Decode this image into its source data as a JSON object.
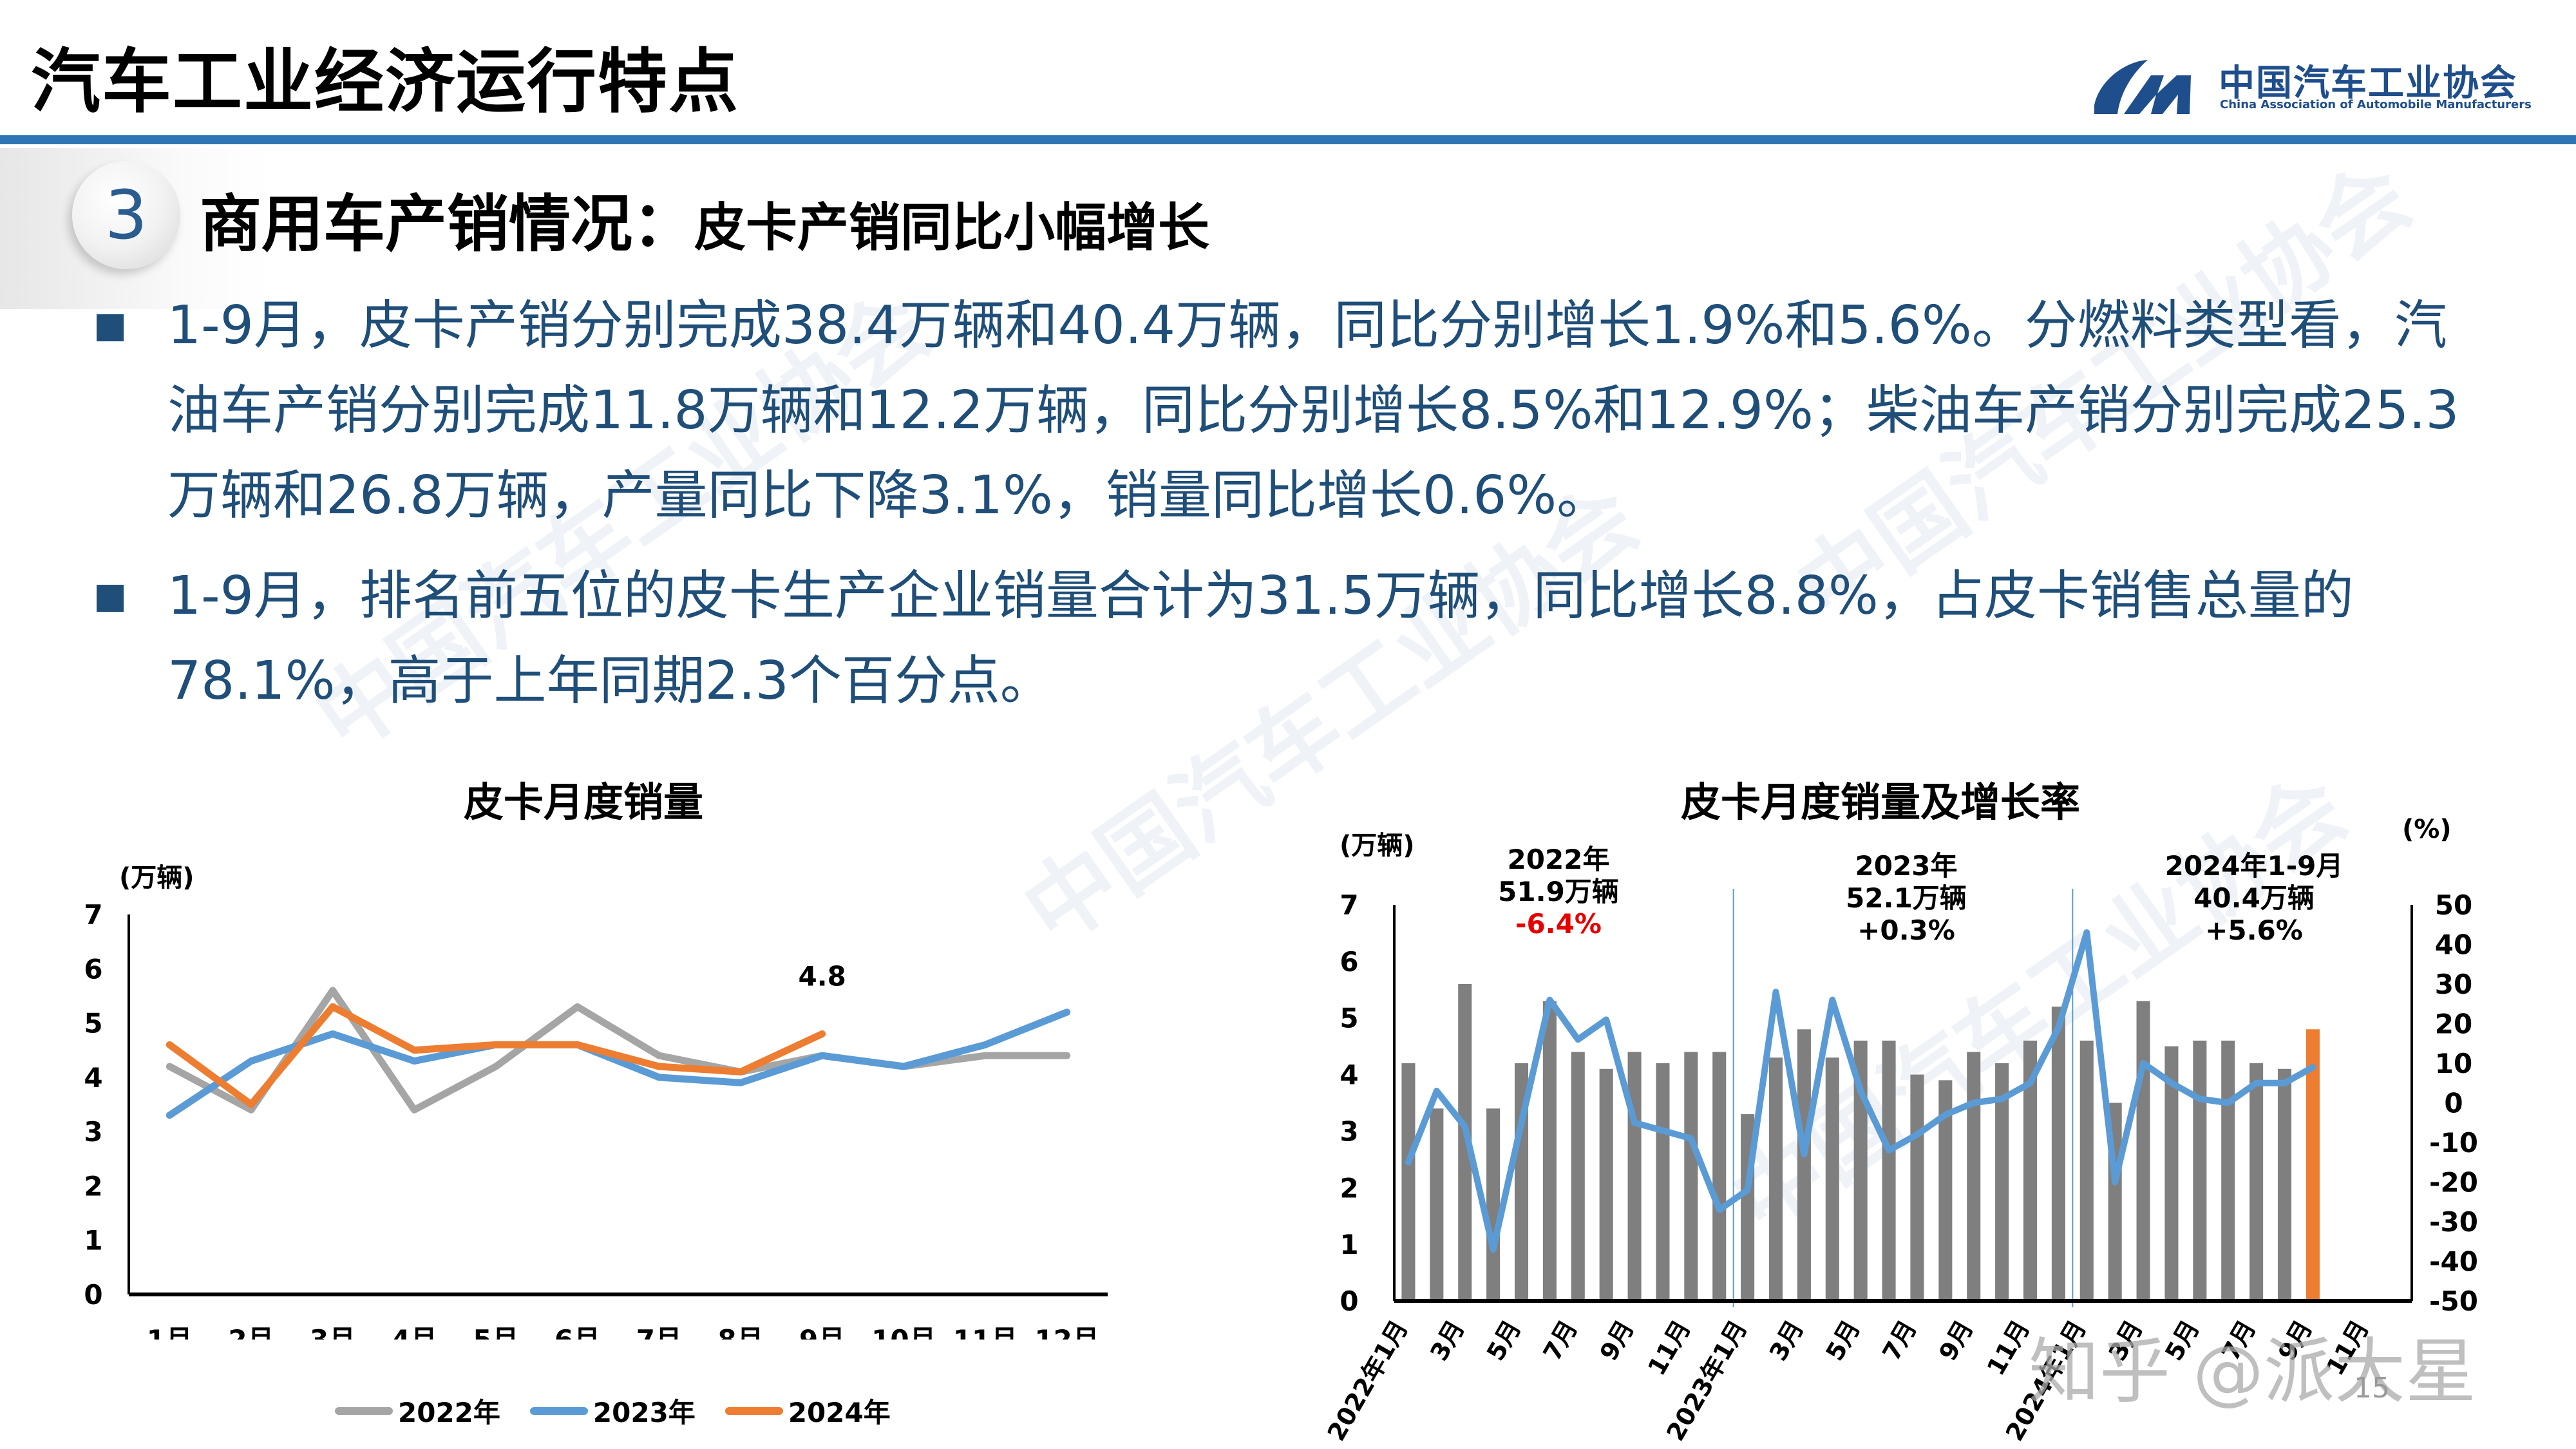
{
  "header": {
    "title": "汽车工业经济运行特点",
    "logo": {
      "cn": "中国汽车工业协会",
      "en": "China Association of Automobile Manufacturers"
    },
    "rule_color": "#2E75B6"
  },
  "section": {
    "number": "3",
    "title_main": "商用车产销情况：",
    "title_sub": "皮卡产销同比小幅增长"
  },
  "bullets": [
    {
      "text": "1-9月，皮卡产销分别完成38.4万辆和40.4万辆，同比分别增长1.9%和5.6%。分燃料类型看，汽油车产销分别完成11.8万辆和12.2万辆，同比分别增长8.5%和12.9%；柴油车产销分别完成25.3万辆和26.8万辆，产量同比下降3.1%，销量同比增长0.6%。"
    },
    {
      "text": "1-9月，排名前五位的皮卡生产企业销量合计为31.5万辆，同比增长8.8%，占皮卡销售总量的78.1%，高于上年同期2.3个百分点。"
    }
  ],
  "colors": {
    "text_blue": "#1F4E79",
    "series_2022": "#A5A5A5",
    "series_2023": "#5B9BD5",
    "series_2024": "#ED7D31",
    "bar_gray": "#7F7F7F",
    "highlight_red": "#E60000"
  },
  "footer": {
    "page_number": "15",
    "credit_watermark": "知乎 @派大星"
  },
  "chart_data": [
    {
      "type": "line",
      "title": "皮卡月度销量",
      "ylabel": "(万辆)",
      "xlabel": "",
      "ylim": [
        0,
        7
      ],
      "yticks": [
        0,
        1,
        2,
        3,
        4,
        5,
        6,
        7
      ],
      "grid": false,
      "legend_position": "bottom",
      "categories": [
        "1月",
        "2月",
        "3月",
        "4月",
        "5月",
        "6月",
        "7月",
        "8月",
        "9月",
        "10月",
        "11月",
        "12月"
      ],
      "series": [
        {
          "name": "2022年",
          "values": [
            4.2,
            3.4,
            5.6,
            3.4,
            4.2,
            5.3,
            4.4,
            4.1,
            4.4,
            4.2,
            4.4,
            4.4
          ]
        },
        {
          "name": "2023年",
          "values": [
            3.3,
            4.3,
            4.8,
            4.3,
            4.6,
            4.6,
            4.0,
            3.9,
            4.4,
            4.2,
            4.6,
            5.2
          ]
        },
        {
          "name": "2024年",
          "values": [
            4.6,
            3.5,
            5.3,
            4.5,
            4.6,
            4.6,
            4.2,
            4.1,
            4.8,
            null,
            null,
            null
          ]
        }
      ],
      "annotations": [
        {
          "x": "9月",
          "series": "2024年",
          "text": "4.8"
        }
      ]
    },
    {
      "type": "bar",
      "title": "皮卡月度销量及增长率",
      "ylabel": "(万辆)",
      "y2label": "(%)",
      "ylim": [
        0,
        7
      ],
      "y2lim": [
        -50,
        50
      ],
      "yticks": [
        0,
        1,
        2,
        3,
        4,
        5,
        6,
        7
      ],
      "y2ticks": [
        -50,
        -40,
        -30,
        -20,
        -10,
        0,
        10,
        20,
        30,
        40,
        50
      ],
      "grid": false,
      "x_tick_labels": [
        "2022年1月",
        "3月",
        "5月",
        "7月",
        "9月",
        "11月",
        "2023年1月",
        "3月",
        "5月",
        "7月",
        "9月",
        "11月",
        "2024年1月",
        "3月",
        "5月",
        "7月",
        "9月",
        "11月"
      ],
      "categories": [
        "2022-01",
        "2022-02",
        "2022-03",
        "2022-04",
        "2022-05",
        "2022-06",
        "2022-07",
        "2022-08",
        "2022-09",
        "2022-10",
        "2022-11",
        "2022-12",
        "2023-01",
        "2023-02",
        "2023-03",
        "2023-04",
        "2023-05",
        "2023-06",
        "2023-07",
        "2023-08",
        "2023-09",
        "2023-10",
        "2023-11",
        "2023-12",
        "2024-01",
        "2024-02",
        "2024-03",
        "2024-04",
        "2024-05",
        "2024-06",
        "2024-07",
        "2024-08",
        "2024-09",
        "2024-10",
        "2024-11",
        "2024-12"
      ],
      "series": [
        {
          "name": "销量(万辆)",
          "type": "bar",
          "axis": "left",
          "values": [
            4.2,
            3.4,
            5.6,
            3.4,
            4.2,
            5.3,
            4.4,
            4.1,
            4.4,
            4.2,
            4.4,
            4.4,
            3.3,
            4.3,
            4.8,
            4.3,
            4.6,
            4.6,
            4.0,
            3.9,
            4.4,
            4.2,
            4.6,
            5.2,
            4.6,
            3.5,
            5.3,
            4.5,
            4.6,
            4.6,
            4.2,
            4.1,
            4.8,
            null,
            null,
            null
          ],
          "highlight_index": 32
        },
        {
          "name": "增长率(%)",
          "type": "line",
          "axis": "right",
          "values": [
            -15,
            3,
            -6,
            -37,
            -5,
            26,
            16,
            21,
            -5,
            -7,
            -9,
            -27,
            -22,
            28,
            -13,
            26,
            3,
            -12,
            -8,
            -3,
            0,
            1,
            5,
            19,
            43,
            -20,
            10,
            5,
            1,
            0,
            5,
            5,
            9,
            null,
            null,
            null
          ]
        }
      ],
      "annotations": [
        {
          "label": "2022年",
          "volume": "51.9万辆",
          "growth": "-6.4%",
          "growth_color": "red"
        },
        {
          "label": "2023年",
          "volume": "52.1万辆",
          "growth": "+0.3%"
        },
        {
          "label": "2024年1-9月",
          "volume": "40.4万辆",
          "growth": "+5.6%"
        }
      ]
    }
  ]
}
